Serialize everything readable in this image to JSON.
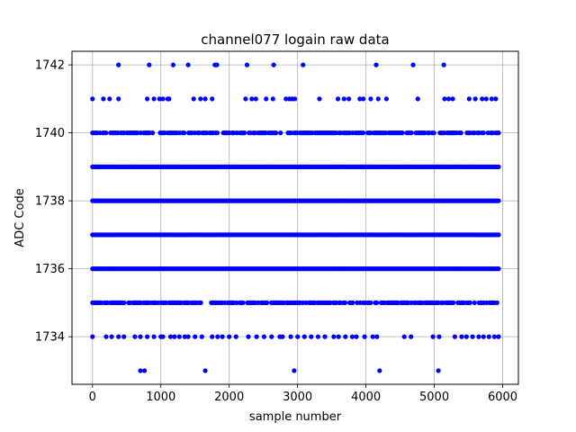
{
  "chart_data": {
    "type": "scatter",
    "title": "channel077 logain raw data",
    "xlabel": "sample number",
    "ylabel": "ADC Code",
    "xlim": [
      -300,
      6230
    ],
    "ylim": [
      1732.6,
      1742.4
    ],
    "xticks": [
      0,
      1000,
      2000,
      3000,
      4000,
      5000,
      6000
    ],
    "xtick_labels": [
      "0",
      "1000",
      "2000",
      "3000",
      "4000",
      "5000",
      "6000"
    ],
    "yticks": [
      1734,
      1736,
      1738,
      1740,
      1742
    ],
    "ytick_labels": [
      "1734",
      "1736",
      "1738",
      "1740",
      "1742"
    ],
    "grid": true,
    "marker_color": "#0000ff",
    "sample_range": [
      0,
      5950
    ],
    "dense_levels": [
      1736,
      1737,
      1738,
      1739
    ],
    "medium_levels": [
      1735,
      1740
    ],
    "sparse_points": [
      {
        "y": 1742,
        "x": [
          380,
          830,
          1180,
          1400,
          1790,
          1820,
          2260,
          2650,
          3080,
          4150,
          4690,
          5140
        ]
      },
      {
        "y": 1741,
        "x": [
          0,
          160,
          250,
          380,
          800,
          900,
          980,
          1030,
          1100,
          1120,
          1480,
          1580,
          1650,
          1750,
          2240,
          2330,
          2390,
          2540,
          2640,
          2830,
          2880,
          2920,
          2960,
          3320,
          3590,
          3680,
          3750,
          3910,
          3960,
          4070,
          4180,
          4300,
          4760,
          5150,
          5210,
          5270,
          5510,
          5600,
          5700,
          5760,
          5840,
          5900
        ]
      },
      {
        "y": 1734,
        "x": [
          0,
          200,
          280,
          380,
          460,
          620,
          700,
          800,
          900,
          1000,
          1030,
          1140,
          1200,
          1270,
          1350,
          1400,
          1500,
          1600,
          1750,
          1830,
          1900,
          2000,
          2100,
          2280,
          2400,
          2510,
          2620,
          2740,
          2780,
          2900,
          3000,
          3100,
          3200,
          3300,
          3400,
          3530,
          3600,
          3700,
          3800,
          3860,
          3980,
          4100,
          4160,
          4560,
          4660,
          4980,
          5070,
          5300,
          5400,
          5470,
          5560,
          5650,
          5720,
          5800,
          5880,
          5940
        ]
      },
      {
        "y": 1733,
        "x": [
          700,
          760,
          1650,
          2950,
          4200,
          5060
        ]
      }
    ]
  }
}
